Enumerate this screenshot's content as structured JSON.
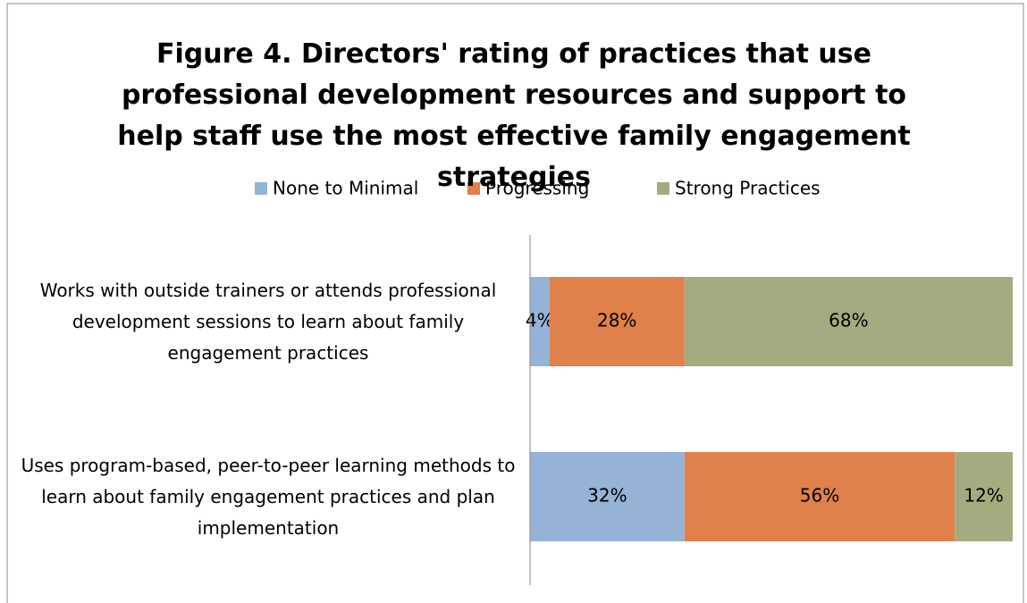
{
  "chart_data": {
    "type": "stacked-barh",
    "title": "Figure 4. Directors' rating of practices that use professional development resources and support to help staff use the most effective family engagement strategies",
    "categories": [
      "Works with outside trainers or attends professional development sessions to learn about family engagement practices",
      "Uses program-based, peer-to-peer learning methods to learn about family engagement practices and plan implementation"
    ],
    "series": [
      {
        "name": "None to Minimal",
        "color": "#95b3d7",
        "values": [
          4,
          32
        ],
        "value_labels": [
          "4%",
          "32%"
        ]
      },
      {
        "name": "Progressing",
        "color": "#e0804a",
        "values": [
          28,
          56
        ],
        "value_labels": [
          "28%",
          "56%"
        ]
      },
      {
        "name": "Strong Practices",
        "color": "#a5ab80",
        "values": [
          68,
          12
        ],
        "value_labels": [
          "68%",
          "12%"
        ]
      }
    ],
    "xlim": [
      0,
      100
    ],
    "legend": "top"
  }
}
